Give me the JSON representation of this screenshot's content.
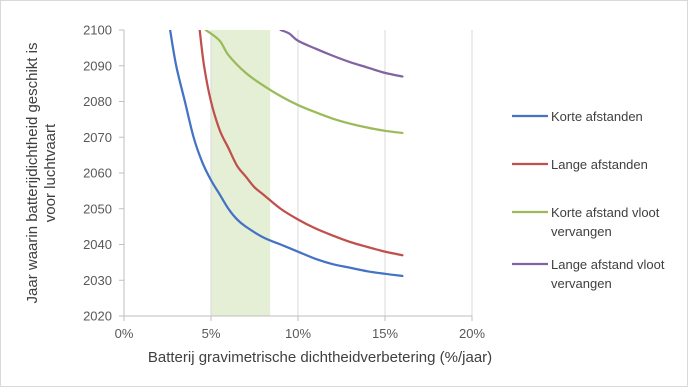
{
  "chart_data": {
    "type": "line",
    "title": "",
    "xlabel": "Batterij gravimetrische dichtheidverbetering (%/jaar)",
    "ylabel": [
      "Jaar waarin batterijdichtheid geschikt is",
      "voor luchtvaart"
    ],
    "xlim": [
      0,
      20
    ],
    "ylim": [
      2020,
      2100
    ],
    "x_ticks": [
      0,
      5,
      10,
      15,
      20
    ],
    "x_tick_labels": [
      "0%",
      "5%",
      "10%",
      "15%",
      "20%"
    ],
    "y_ticks": [
      2020,
      2030,
      2040,
      2050,
      2060,
      2070,
      2080,
      2090,
      2100
    ],
    "y_tick_labels": [
      "2020",
      "2030",
      "2040",
      "2050",
      "2060",
      "2070",
      "2080",
      "2090",
      "2100"
    ],
    "grid": "vertical",
    "legend_position": "right",
    "highlight_band": {
      "x_from": 5,
      "x_to": 8.4,
      "color": "#e4efd6"
    },
    "series": [
      {
        "name": "Korte afstanden",
        "legend_lines": [
          "Korte afstanden"
        ],
        "color": "#4472c4",
        "points": [
          [
            2.65,
            2100
          ],
          [
            3.0,
            2090
          ],
          [
            3.5,
            2080
          ],
          [
            4.0,
            2070
          ],
          [
            4.5,
            2063
          ],
          [
            5.0,
            2058
          ],
          [
            5.5,
            2054
          ],
          [
            6.0,
            2050
          ],
          [
            6.5,
            2047
          ],
          [
            7.0,
            2045
          ],
          [
            8.0,
            2042
          ],
          [
            9.0,
            2040
          ],
          [
            10.0,
            2038
          ],
          [
            11.0,
            2036
          ],
          [
            12.0,
            2034.5
          ],
          [
            13.0,
            2033.5
          ],
          [
            14.0,
            2032.5
          ],
          [
            15.0,
            2031.8
          ],
          [
            16.0,
            2031.2
          ]
        ]
      },
      {
        "name": "Lange afstanden",
        "legend_lines": [
          "Lange afstanden"
        ],
        "color": "#c0504d",
        "points": [
          [
            4.35,
            2100
          ],
          [
            4.6,
            2090
          ],
          [
            5.0,
            2080
          ],
          [
            5.5,
            2072
          ],
          [
            6.0,
            2067
          ],
          [
            6.5,
            2062
          ],
          [
            7.0,
            2059
          ],
          [
            7.5,
            2056
          ],
          [
            8.0,
            2054
          ],
          [
            9.0,
            2050
          ],
          [
            10.0,
            2047
          ],
          [
            11.0,
            2044.5
          ],
          [
            12.0,
            2042.5
          ],
          [
            13.0,
            2040.7
          ],
          [
            14.0,
            2039.3
          ],
          [
            15.0,
            2038
          ],
          [
            16.0,
            2037
          ]
        ]
      },
      {
        "name": "Korte afstand vloot vervangen",
        "legend_lines": [
          "Korte afstand vloot",
          "vervangen"
        ],
        "color": "#9bbb59",
        "points": [
          [
            4.7,
            2100
          ],
          [
            5.5,
            2097
          ],
          [
            6.0,
            2093
          ],
          [
            7.0,
            2088
          ],
          [
            8.0,
            2084.5
          ],
          [
            9.0,
            2081.5
          ],
          [
            10.0,
            2079
          ],
          [
            11.0,
            2077
          ],
          [
            12.0,
            2075.2
          ],
          [
            13.0,
            2073.8
          ],
          [
            14.0,
            2072.7
          ],
          [
            15.0,
            2071.8
          ],
          [
            16.0,
            2071.2
          ]
        ]
      },
      {
        "name": "Lange afstand vloot vervangen",
        "legend_lines": [
          "Lange afstand vloot",
          "vervangen"
        ],
        "color": "#8064a2",
        "points": [
          [
            9.0,
            2100
          ],
          [
            9.5,
            2099
          ],
          [
            10.0,
            2097
          ],
          [
            11.0,
            2094.8
          ],
          [
            12.0,
            2092.8
          ],
          [
            13.0,
            2091
          ],
          [
            14.0,
            2089.5
          ],
          [
            15.0,
            2088
          ],
          [
            16.0,
            2087
          ]
        ]
      }
    ]
  }
}
